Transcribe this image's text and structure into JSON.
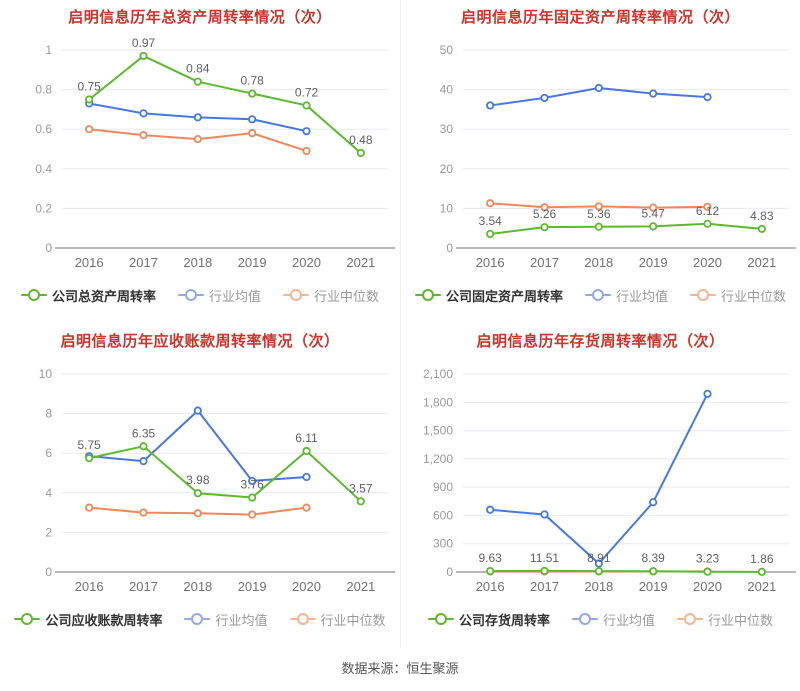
{
  "footer": {
    "source_label": "数据来源：恒生聚源"
  },
  "colors": {
    "title": "#cc342b",
    "company": "#5cb92e",
    "mean": "#4678de",
    "median": "#f0875a",
    "legend_mean": "#8fa9ec",
    "legend_median": "#f8b491",
    "grid": "#e9e9f0",
    "axis": "#6f6f6f",
    "tick_label": "#999999",
    "x_label": "#707070",
    "point_label": "#5f5f5f",
    "legend_company_text": "#333333",
    "legend_text": "#999999",
    "source_text": "#555555"
  },
  "chart_data": [
    {
      "type": "line",
      "title": "启明信息历年总资产周转率情况（次）",
      "categories": [
        "2016",
        "2017",
        "2018",
        "2019",
        "2020",
        "2021"
      ],
      "ylim": [
        0,
        1
      ],
      "y_ticks": [
        0,
        0.2,
        0.4,
        0.6,
        0.8,
        1
      ],
      "y_tick_labels": [
        "0",
        "0.2",
        "0.4",
        "0.6",
        "0.8",
        "1"
      ],
      "grid": true,
      "legend_position": "bottom",
      "series": [
        {
          "name": "公司总资产周转率",
          "role": "company",
          "values": [
            0.75,
            0.97,
            0.84,
            0.78,
            0.72,
            0.48
          ],
          "point_labels": [
            "0.75",
            "0.97",
            "0.84",
            "0.78",
            "0.72",
            "0.48"
          ]
        },
        {
          "name": "行业均值",
          "role": "mean",
          "values": [
            0.73,
            0.68,
            0.66,
            0.65,
            0.59
          ]
        },
        {
          "name": "行业中位数",
          "role": "median",
          "values": [
            0.6,
            0.57,
            0.55,
            0.58,
            0.49
          ]
        }
      ]
    },
    {
      "type": "line",
      "title": "启明信息历年固定资产周转率情况（次）",
      "categories": [
        "2016",
        "2017",
        "2018",
        "2019",
        "2020",
        "2021"
      ],
      "ylim": [
        0,
        50
      ],
      "y_ticks": [
        0,
        10,
        20,
        30,
        40,
        50
      ],
      "y_tick_labels": [
        "0",
        "10",
        "20",
        "30",
        "40",
        "50"
      ],
      "grid": true,
      "legend_position": "bottom",
      "series": [
        {
          "name": "公司固定资产周转率",
          "role": "company",
          "values": [
            3.54,
            5.26,
            5.36,
            5.47,
            6.12,
            4.83
          ],
          "point_labels": [
            "3.54",
            "5.26",
            "5.36",
            "5.47",
            "6.12",
            "4.83"
          ]
        },
        {
          "name": "行业均值",
          "role": "mean",
          "values": [
            36,
            37.9,
            40.4,
            39,
            38.1
          ]
        },
        {
          "name": "行业中位数",
          "role": "median",
          "values": [
            11.3,
            10.3,
            10.5,
            10.2,
            10.4
          ]
        }
      ]
    },
    {
      "type": "line",
      "title": "启明信息历年应收账款周转率情况（次）",
      "categories": [
        "2016",
        "2017",
        "2018",
        "2019",
        "2020",
        "2021"
      ],
      "ylim": [
        0,
        10
      ],
      "y_ticks": [
        0,
        2,
        4,
        6,
        8,
        10
      ],
      "y_tick_labels": [
        "0",
        "2",
        "4",
        "6",
        "8",
        "10"
      ],
      "grid": true,
      "legend_position": "bottom",
      "series": [
        {
          "name": "公司应收账款周转率",
          "role": "company",
          "values": [
            5.75,
            6.35,
            3.98,
            3.76,
            6.11,
            3.57
          ],
          "point_labels": [
            "5.75",
            "6.35",
            "3.98",
            "3.76",
            "6.11",
            "3.57"
          ]
        },
        {
          "name": "行业均值",
          "role": "mean",
          "values": [
            5.85,
            5.6,
            8.15,
            4.6,
            4.8
          ]
        },
        {
          "name": "行业中位数",
          "role": "median",
          "values": [
            3.25,
            3.0,
            2.97,
            2.9,
            3.25
          ]
        }
      ]
    },
    {
      "type": "line",
      "title": "启明信息历年存货周转率情况（次）",
      "categories": [
        "2016",
        "2017",
        "2018",
        "2019",
        "2020",
        "2021"
      ],
      "ylim": [
        0,
        2100
      ],
      "y_ticks": [
        0,
        300,
        600,
        900,
        1200,
        1500,
        1800,
        2100
      ],
      "y_tick_labels": [
        "0",
        "300",
        "600",
        "900",
        "1,200",
        "1,500",
        "1,800",
        "2,100"
      ],
      "grid": true,
      "legend_position": "bottom",
      "series": [
        {
          "name": "公司存货周转率",
          "role": "company",
          "values": [
            9.63,
            11.51,
            8.91,
            8.39,
            3.23,
            1.86
          ],
          "point_labels": [
            "9.63",
            "11.51",
            "8.91",
            "8.39",
            "3.23",
            "1.86"
          ]
        },
        {
          "name": "行业均值",
          "role": "mean",
          "values": [
            660,
            610,
            90,
            740,
            1890
          ]
        },
        {
          "name": "行业中位数",
          "role": "median",
          "values": [
            6,
            6,
            5,
            5,
            6
          ]
        }
      ]
    }
  ]
}
